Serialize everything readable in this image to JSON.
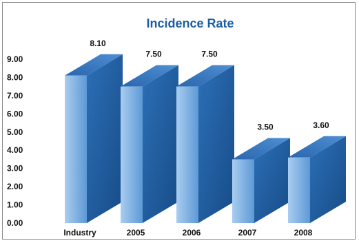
{
  "chart_data": {
    "type": "bar",
    "title": "Incidence Rate",
    "categories": [
      "Industry",
      "2005",
      "2006",
      "2007",
      "2008"
    ],
    "values": [
      8.1,
      7.5,
      7.5,
      3.5,
      3.6
    ],
    "value_labels": [
      "8.10",
      "7.50",
      "7.50",
      "3.50",
      "3.60"
    ],
    "yticks": [
      "0.00",
      "1.00",
      "2.00",
      "3.00",
      "4.00",
      "5.00",
      "6.00",
      "7.00",
      "8.00",
      "9.00"
    ],
    "ylim": [
      0,
      9
    ],
    "xlabel": "",
    "ylabel": "",
    "grid": false,
    "style": "3d-columns",
    "colors": {
      "front_light": "#a9cdef",
      "front_dark": "#5d99d6",
      "side_light": "#2c6fb6",
      "side_dark": "#174c88",
      "top_light": "#4f8fd3",
      "top_dark": "#2a66ad",
      "title": "#1b5fa3"
    }
  }
}
